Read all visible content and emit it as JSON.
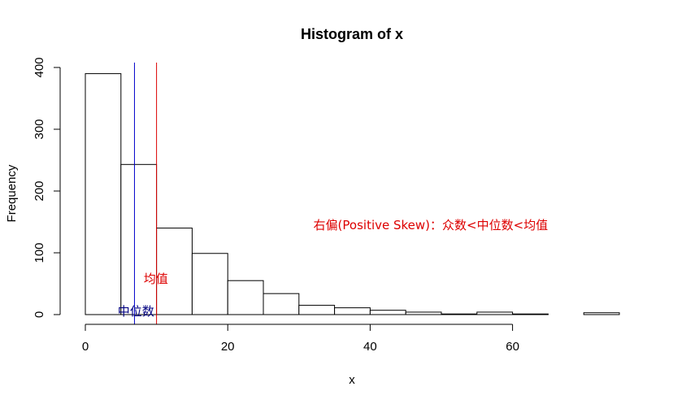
{
  "chart_data": {
    "type": "bar",
    "title": "Histogram of x",
    "xlabel": "x",
    "ylabel": "Frequency",
    "xlim": [
      0,
      75
    ],
    "ylim": [
      0,
      400
    ],
    "x_ticks": [
      0,
      20,
      40,
      60
    ],
    "y_ticks": [
      0,
      100,
      200,
      300,
      400
    ],
    "bin_edges": [
      0,
      5,
      10,
      15,
      20,
      25,
      30,
      35,
      40,
      45,
      50,
      55,
      60,
      65,
      70,
      75
    ],
    "values": [
      390,
      243,
      140,
      99,
      55,
      34,
      15,
      11,
      7,
      4,
      1,
      4,
      1,
      0,
      3
    ],
    "lines": [
      {
        "name": "median",
        "x": 6.9,
        "color": "#0000cc"
      },
      {
        "name": "mean",
        "x": 10.0,
        "color": "#dd0000"
      }
    ],
    "annotations": [
      {
        "text": "中位数",
        "x": 7.1,
        "y": 5,
        "color": "#000080"
      },
      {
        "text": "均值",
        "x": 9.9,
        "y": 58,
        "color": "#dd0000"
      },
      {
        "text": "右偏(Positive Skew)：众数<中位数<均值",
        "x": 48.5,
        "y": 145,
        "color": "#dd0000"
      }
    ]
  }
}
